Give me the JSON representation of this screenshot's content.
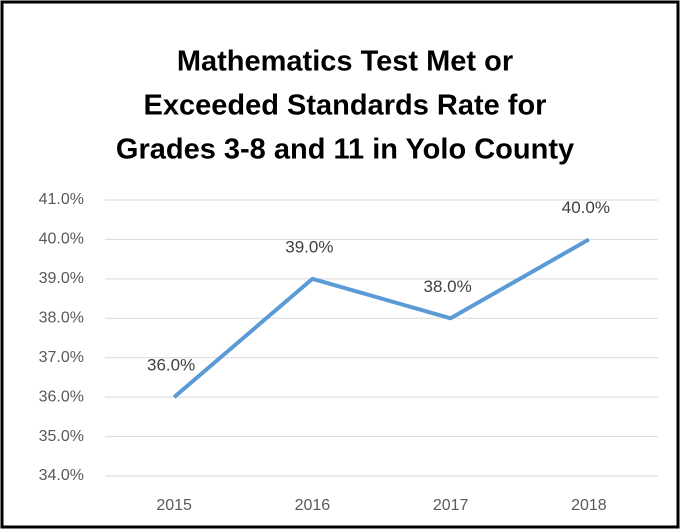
{
  "chart_data": {
    "type": "line",
    "title": [
      "Mathematics Test Met or",
      "Exceeded Standards Rate for",
      "Grades 3-8 and 11 in Yolo County"
    ],
    "categories": [
      "2015",
      "2016",
      "2017",
      "2018"
    ],
    "series": [
      {
        "name": null,
        "color": "#5b9bd5",
        "values": [
          36,
          39,
          38,
          40
        ],
        "value_labels": [
          "36.0%",
          "39.0%",
          "38.0%",
          "40.0%"
        ]
      }
    ],
    "ylim": [
      34,
      41
    ],
    "yticks": [
      {
        "value": 34,
        "label": "34.0%"
      },
      {
        "value": 35,
        "label": "35.0%"
      },
      {
        "value": 36,
        "label": "36.0%"
      },
      {
        "value": 37,
        "label": "37.0%"
      },
      {
        "value": 38,
        "label": "38.0%"
      },
      {
        "value": 39,
        "label": "39.0%"
      },
      {
        "value": 40,
        "label": "40.0%"
      },
      {
        "value": 41,
        "label": "41.0%"
      }
    ],
    "grid": true
  }
}
